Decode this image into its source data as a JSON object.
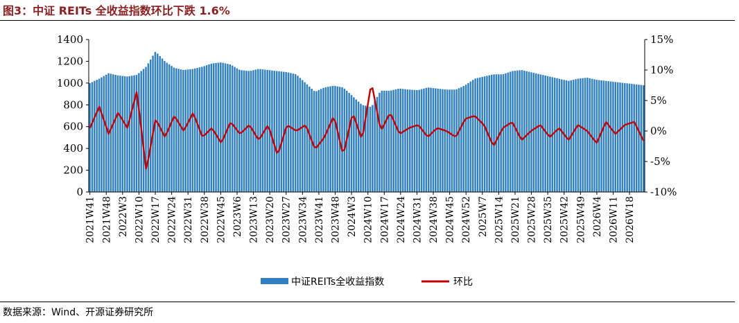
{
  "header": {
    "title": "图3：中证 REITs 全收益指数环比下跌 1.6%"
  },
  "footer": {
    "source": "数据来源：Wind、开源证券研究所"
  },
  "colors": {
    "bar": "#2f7fc1",
    "line": "#c00000",
    "title": "#8b1f1f"
  },
  "chart_data": {
    "type": "bar+line",
    "title": "中证 REITs 全收益指数环比下跌 1.6%",
    "legend": [
      "中证REITs全收益指数",
      "环比"
    ],
    "legend_position": "bottom",
    "grid": false,
    "y_left": {
      "range": [
        0,
        1400
      ],
      "ticks": [
        "0",
        "200",
        "400",
        "600",
        "800",
        "1000",
        "1200",
        "1400"
      ]
    },
    "y_right": {
      "range": [
        -10,
        15
      ],
      "ticks": [
        "-10%",
        "-5%",
        "0%",
        "5%",
        "10%",
        "15%"
      ]
    },
    "x_tick_labels": [
      "2021W41",
      "2021W48",
      "2022W3",
      "2022W10",
      "2022W17",
      "2022W24",
      "2022W31",
      "2022W38",
      "2022W45",
      "2023W6",
      "2023W13",
      "2023W20",
      "2023W27",
      "2023W34",
      "2023W41",
      "2023W48",
      "2024W3",
      "2024W10",
      "2024W17",
      "2024W24",
      "2024W31",
      "2024W38",
      "2024W45",
      "2024W52",
      "2025W7",
      "2025W14",
      "2025W21",
      "2025W28",
      "2025W35",
      "2025W42",
      "2025W49",
      "2026W4",
      "2026W11",
      "2026W18"
    ],
    "series": [
      {
        "name": "中证REITs全收益指数",
        "kind": "bar",
        "axis": "left",
        "points_per_tick": 7,
        "values": [
          1000,
          1040,
          1090,
          1070,
          1060,
          1075,
          1150,
          1290,
          1200,
          1140,
          1120,
          1130,
          1150,
          1180,
          1190,
          1170,
          1120,
          1110,
          1130,
          1120,
          1110,
          1100,
          1080,
          1000,
          920,
          960,
          975,
          960,
          880,
          800,
          780,
          930,
          930,
          950,
          940,
          935,
          960,
          950,
          940,
          940,
          980,
          1040,
          1060,
          1080,
          1080,
          1110,
          1120,
          1100,
          1080,
          1060,
          1040,
          1020,
          1040,
          1050,
          1030,
          1020,
          1010,
          1000,
          990,
          980
        ]
      },
      {
        "name": "环比",
        "kind": "line",
        "axis": "right",
        "points_per_tick": 7,
        "values": [
          0.5,
          4.0,
          -0.5,
          3.0,
          0.5,
          6.5,
          -6.5,
          2.0,
          -1.0,
          2.5,
          0.0,
          3.0,
          -1.0,
          0.5,
          -2.0,
          1.5,
          -0.5,
          1.0,
          -1.5,
          1.0,
          -4.0,
          1.0,
          0.0,
          1.0,
          -3.0,
          -1.0,
          2.5,
          -4.0,
          3.0,
          -1.5,
          8.0,
          0.0,
          3.0,
          -0.5,
          0.5,
          1.0,
          -1.0,
          0.5,
          0.0,
          -1.0,
          2.0,
          2.5,
          1.0,
          -2.5,
          0.5,
          1.5,
          -1.5,
          0.0,
          1.0,
          -1.0,
          0.5,
          -1.5,
          1.0,
          0.0,
          -2.0,
          1.5,
          -0.5,
          1.0,
          1.5,
          -1.6
        ]
      }
    ]
  }
}
